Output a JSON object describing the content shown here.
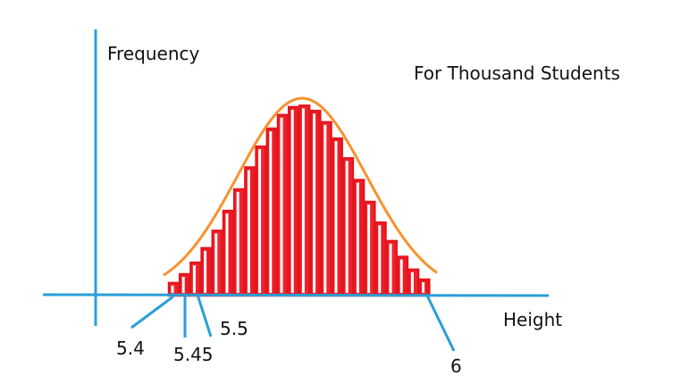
{
  "labels": {
    "y_axis": "Frequency",
    "caption": "For Thousand Students",
    "x_axis": "Height",
    "ticks": [
      "5.4",
      "5.45",
      "5.5",
      "6"
    ]
  }
}
